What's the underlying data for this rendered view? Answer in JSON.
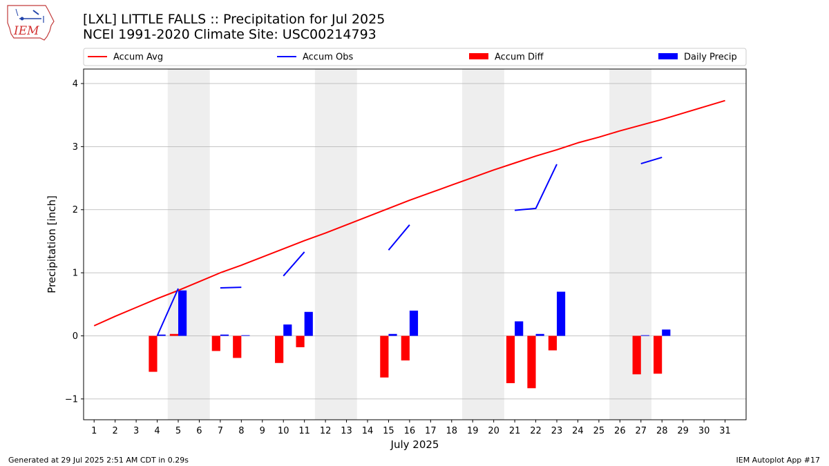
{
  "header": {
    "title": "[LXL] LITTLE FALLS :: Precipitation for Jul 2025",
    "subtitle": "NCEI 1991-2020 Climate Site: USC00214793",
    "logo_text": "IEM"
  },
  "footer": {
    "left": "Generated at 29 Jul 2025 2:51 AM CDT in 0.29s",
    "right": "IEM Autoplot App #17"
  },
  "colors": {
    "accum_avg": "#ff0000",
    "accum_obs": "#0000ff",
    "accum_diff": "#ff0000",
    "daily_precip": "#0000ff",
    "weekend_shade": "#eeeeee",
    "grid": "#b0b0b0"
  },
  "chart_data": {
    "type": "bar",
    "xlabel": "July 2025",
    "ylabel": "Precipitation [inch]",
    "xlim": [
      0.5,
      32
    ],
    "ylim": [
      -1.33,
      4.23
    ],
    "yticks": [
      -1,
      0,
      1,
      2,
      3,
      4
    ],
    "ytick_labels": [
      "−1",
      "0",
      "1",
      "2",
      "3",
      "4"
    ],
    "x": [
      1,
      2,
      3,
      4,
      5,
      6,
      7,
      8,
      9,
      10,
      11,
      12,
      13,
      14,
      15,
      16,
      17,
      18,
      19,
      20,
      21,
      22,
      23,
      24,
      25,
      26,
      27,
      28,
      29,
      30,
      31
    ],
    "grid": "horizontal",
    "legend_position": "top",
    "weekends": [
      [
        5,
        6
      ],
      [
        12,
        13
      ],
      [
        19,
        20
      ],
      [
        26,
        27
      ]
    ],
    "series": [
      {
        "name": "Accum Avg",
        "kind": "line",
        "values": [
          0.16,
          0.31,
          0.45,
          0.59,
          0.72,
          0.86,
          1.0,
          1.12,
          1.25,
          1.38,
          1.51,
          1.63,
          1.76,
          1.89,
          2.02,
          2.15,
          2.27,
          2.39,
          2.51,
          2.63,
          2.74,
          2.85,
          2.95,
          3.06,
          3.15,
          3.25,
          3.34,
          3.43,
          3.53,
          3.63,
          3.73
        ]
      },
      {
        "name": "Accum Obs",
        "kind": "line",
        "values": [
          null,
          null,
          null,
          0.0,
          0.75,
          null,
          0.76,
          0.77,
          null,
          0.95,
          1.33,
          null,
          null,
          null,
          1.36,
          1.76,
          null,
          null,
          null,
          null,
          1.99,
          2.02,
          2.72,
          null,
          null,
          null,
          2.73,
          2.83,
          null,
          null,
          null
        ]
      },
      {
        "name": "Accum Diff",
        "kind": "bar",
        "values": [
          null,
          null,
          null,
          -0.57,
          0.03,
          null,
          -0.24,
          -0.35,
          null,
          -0.43,
          -0.18,
          null,
          null,
          null,
          -0.66,
          -0.39,
          null,
          null,
          null,
          null,
          -0.75,
          -0.83,
          -0.23,
          null,
          null,
          null,
          -0.61,
          -0.6,
          null,
          null,
          null
        ]
      },
      {
        "name": "Daily Precip",
        "kind": "bar",
        "values": [
          null,
          null,
          null,
          0.02,
          0.72,
          null,
          0.02,
          0.01,
          null,
          0.18,
          0.38,
          null,
          null,
          null,
          0.03,
          0.4,
          null,
          null,
          null,
          null,
          0.23,
          0.03,
          0.7,
          null,
          null,
          null,
          0.01,
          0.1,
          null,
          null,
          null
        ]
      }
    ]
  }
}
